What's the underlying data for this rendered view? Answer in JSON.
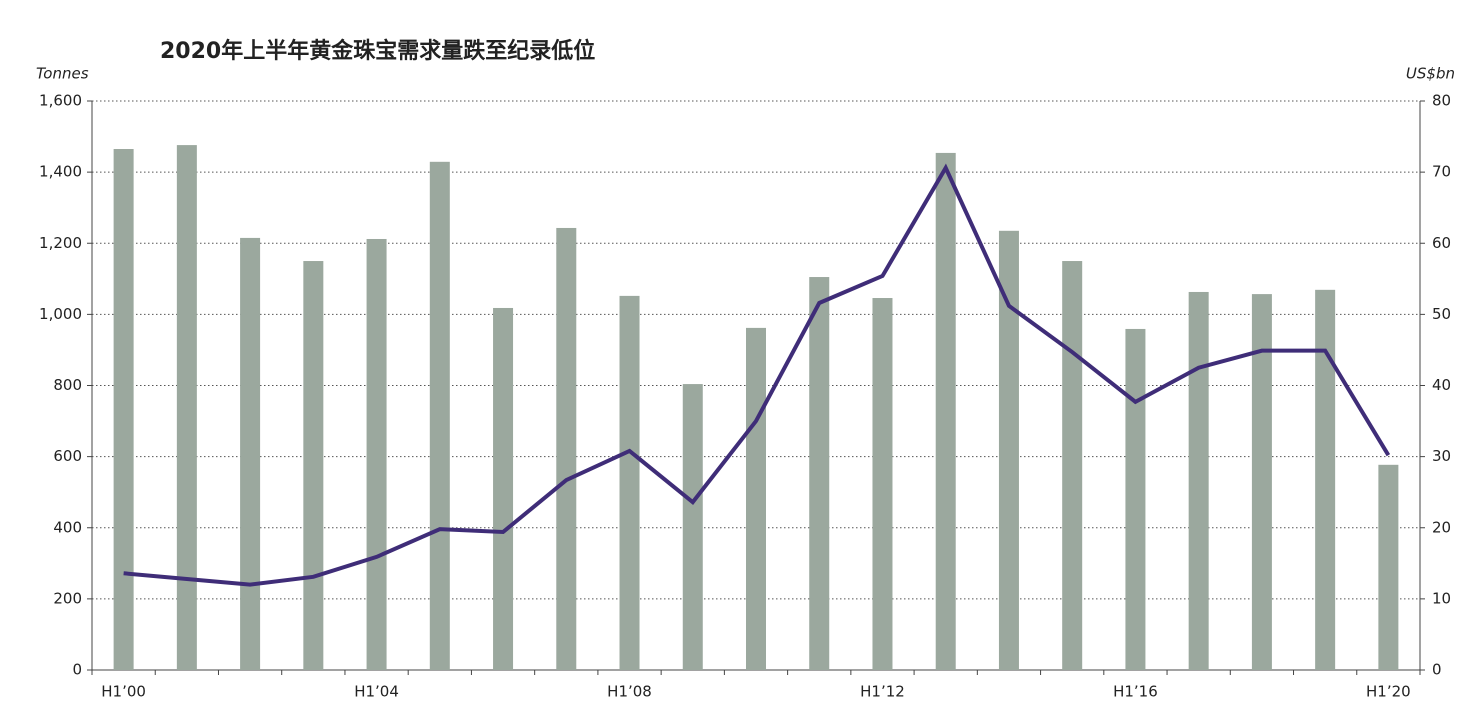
{
  "chart_data": {
    "type": "combo",
    "title": "2020年上半年黄金珠宝需求量跌至纪录低位",
    "y_label": "Tonnes",
    "y2_label": "US$bn",
    "categories": [
      "H1’00",
      null,
      null,
      null,
      "H1’04",
      null,
      null,
      null,
      "H1’08",
      null,
      null,
      null,
      "H1’12",
      null,
      null,
      null,
      "H1’16",
      null,
      null,
      null,
      "H1’20"
    ],
    "series": [
      {
        "type": "bar",
        "color": "#9ba89e",
        "values": [
          1465,
          1476,
          1215,
          1150,
          1212,
          1429,
          1018,
          1243,
          1052,
          804,
          962,
          1105,
          1046,
          1454,
          1235,
          1150,
          959,
          1063,
          1057,
          1069,
          577
        ]
      },
      {
        "type": "line",
        "color": "#3f2d78",
        "axis": "y2",
        "values": [
          13.6,
          12.8,
          12.0,
          13.1,
          15.9,
          19.8,
          19.4,
          26.7,
          30.8,
          23.6,
          35.0,
          51.6,
          55.4,
          70.6,
          51.2,
          44.7,
          37.7,
          42.5,
          44.9,
          44.9,
          30.2
        ]
      }
    ],
    "ylim": [
      0,
      1600
    ],
    "yticks": [
      0,
      200,
      400,
      600,
      800,
      {
        "value": 1000,
        "label": "1,000"
      },
      {
        "value": 1200,
        "label": "1,200"
      },
      {
        "value": 1400,
        "label": "1,400"
      },
      {
        "value": 1600,
        "label": "1,600"
      }
    ],
    "y2lim": [
      0,
      80
    ],
    "y2ticks": [
      0,
      10,
      20,
      30,
      40,
      50,
      60,
      70,
      80
    ],
    "grid": true
  }
}
